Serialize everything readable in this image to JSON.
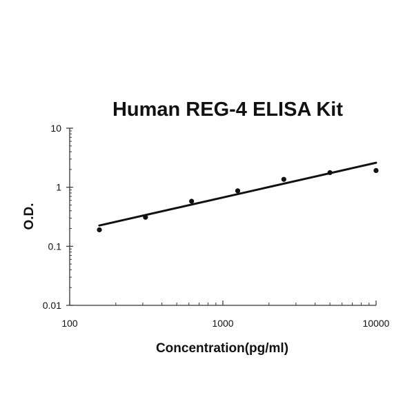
{
  "chart_data": {
    "type": "scatter",
    "title": "Human REG-4 ELISA Kit",
    "xlabel": "Concentration(pg/ml)",
    "ylabel": "O.D.",
    "x_scale": "log",
    "y_scale": "log",
    "xlim": [
      100,
      10000
    ],
    "ylim": [
      0.01,
      10
    ],
    "x_ticks": [
      "100",
      "1000",
      "10000"
    ],
    "y_ticks": [
      "10",
      "1",
      "0.1",
      "0.01"
    ],
    "grid": false,
    "legend": "none",
    "colors": {
      "points": "#111111",
      "line": "#111111",
      "axis": "#333333"
    },
    "series": [
      {
        "type": "scatter",
        "x": [
          156.25,
          312.5,
          625,
          1250,
          2500,
          5000,
          10000
        ],
        "y": [
          0.19,
          0.31,
          0.58,
          0.87,
          1.36,
          1.77,
          1.92
        ]
      },
      {
        "type": "line",
        "x": [
          156,
          10000
        ],
        "y": [
          0.225,
          2.6
        ]
      }
    ]
  }
}
